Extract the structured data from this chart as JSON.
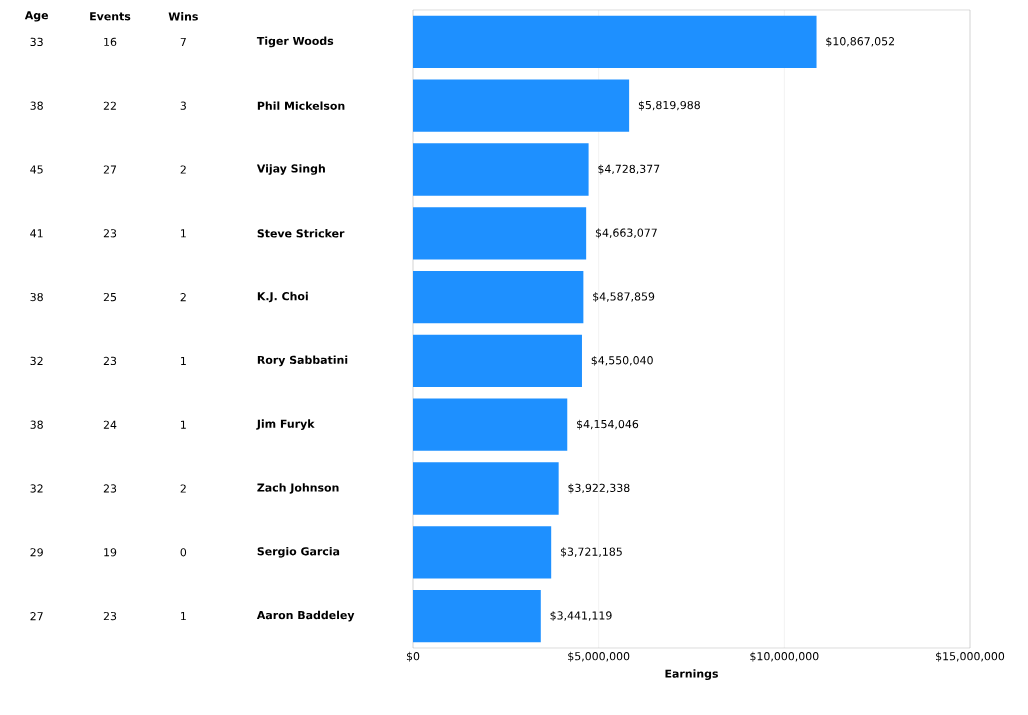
{
  "chart_data": [
    {
      "type": "other",
      "categories": [
        "Age",
        "Events",
        "Wins"
      ],
      "annotations": [
        "33",
        "16",
        "7",
        "38",
        "22",
        "3",
        "45",
        "27",
        "2",
        "41",
        "23",
        "1",
        "38",
        "25",
        "2",
        "32",
        "23",
        "1",
        "38",
        "24",
        "1",
        "32",
        "23",
        "2",
        "29",
        "19",
        "0",
        "27",
        "23",
        "1"
      ]
    },
    {
      "type": "bar",
      "orientation": "horizontal",
      "xlabel": "Earnings",
      "grid": "x",
      "categories": [
        "Tiger Woods",
        "Phil Mickelson",
        "Vijay Singh",
        "Steve Stricker",
        "K.J. Choi",
        "Rory Sabbatini",
        "Jim Furyk",
        "Zach Johnson",
        "Sergio Garcia",
        "Aaron Baddeley"
      ],
      "xlim": [
        0,
        15000000
      ],
      "xticks": [
        {
          "value": 0,
          "label": "$0"
        },
        {
          "value": 5000000,
          "label": "$5,000,000"
        },
        {
          "value": 10000000,
          "label": "$10,000,000"
        },
        {
          "value": 15000000,
          "label": "$15,000,000"
        }
      ],
      "series": [
        {
          "color": "#1e90ff",
          "values": [
            10867052,
            5819988,
            4728377,
            4663077,
            4587859,
            4550040,
            4154046,
            3922338,
            3721185,
            3441119
          ],
          "value_labels": [
            "$10,867,052",
            "$5,819,988",
            "$4,728,377",
            "$4,663,077",
            "$4,587,859",
            "$4,550,040",
            "$4,154,046",
            "$3,922,338",
            "$3,721,185",
            "$3,441,119"
          ]
        }
      ]
    }
  ]
}
